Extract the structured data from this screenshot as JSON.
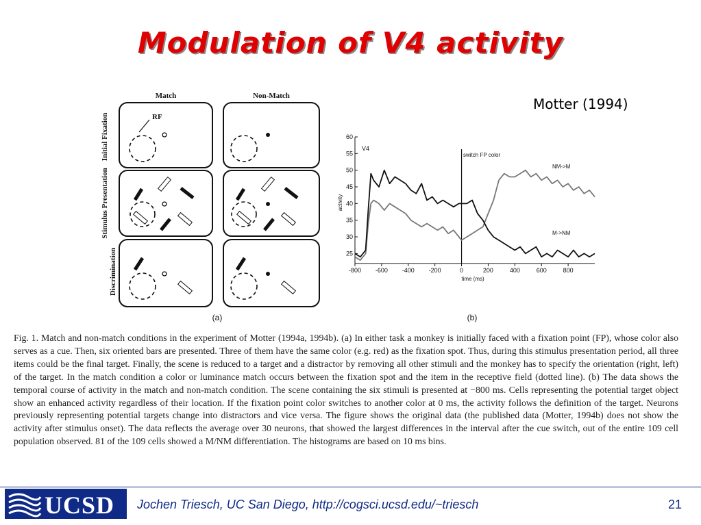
{
  "slide": {
    "title": "Modulation of V4 activity",
    "citation": "Motter (1994)",
    "page_number": "21"
  },
  "figure_a": {
    "label": "(a)",
    "column_headers": [
      "Match",
      "Non-Match"
    ],
    "row_labels": [
      "Initial Fixation",
      "Stimulus Presentation",
      "Discrimination"
    ],
    "rf_label": "RF"
  },
  "figure_b": {
    "label": "(b)",
    "panel_label": "V4",
    "event_label": "switch FP color",
    "y_axis_label": "activity",
    "x_axis_label": "time (ms)",
    "y_ticks": [
      "60",
      "55",
      "50",
      "45",
      "40",
      "35",
      "30",
      "25"
    ],
    "x_ticks": [
      "-800",
      "-600",
      "-400",
      "-200",
      "0",
      "200",
      "400",
      "600",
      "800"
    ],
    "series_labels": [
      "NM->M",
      "M->NM"
    ]
  },
  "chart_data": {
    "type": "line",
    "xlabel": "time (ms)",
    "ylabel": "activity",
    "xlim": [
      -800,
      1000
    ],
    "ylim": [
      22,
      60
    ],
    "event_line_x": 0,
    "series": [
      {
        "name": "NM->M",
        "x": [
          -800,
          -760,
          -720,
          -700,
          -680,
          -660,
          -620,
          -580,
          -540,
          -500,
          -460,
          -420,
          -380,
          -340,
          -300,
          -260,
          -220,
          -180,
          -140,
          -100,
          -60,
          -20,
          0,
          40,
          80,
          120,
          160,
          200,
          240,
          280,
          320,
          360,
          400,
          440,
          480,
          520,
          560,
          600,
          640,
          680,
          720,
          760,
          800,
          840,
          880,
          920,
          960,
          1000
        ],
        "y": [
          24,
          23,
          25,
          34,
          40,
          41,
          40,
          38,
          40,
          39,
          38,
          37,
          35,
          34,
          33,
          34,
          33,
          32,
          33,
          31,
          32,
          30,
          29,
          30,
          31,
          32,
          33,
          37,
          41,
          47,
          49,
          48,
          48,
          49,
          50,
          48,
          49,
          47,
          48,
          46,
          47,
          45,
          46,
          44,
          45,
          43,
          44,
          42
        ]
      },
      {
        "name": "M->NM",
        "x": [
          -800,
          -760,
          -720,
          -700,
          -680,
          -660,
          -620,
          -580,
          -540,
          -500,
          -460,
          -420,
          -380,
          -340,
          -300,
          -260,
          -220,
          -180,
          -140,
          -100,
          -60,
          -20,
          0,
          40,
          80,
          120,
          160,
          200,
          240,
          280,
          320,
          360,
          400,
          440,
          480,
          520,
          560,
          600,
          640,
          680,
          720,
          760,
          800,
          840,
          880,
          920,
          960,
          1000
        ],
        "y": [
          25,
          24,
          26,
          38,
          49,
          47,
          45,
          50,
          46,
          48,
          47,
          46,
          44,
          43,
          46,
          41,
          42,
          40,
          41,
          40,
          39,
          40,
          40,
          40,
          41,
          37,
          35,
          32,
          30,
          29,
          28,
          27,
          26,
          27,
          25,
          26,
          27,
          24,
          25,
          24,
          26,
          25,
          24,
          26,
          24,
          25,
          24,
          25
        ]
      }
    ]
  },
  "caption": "Fig. 1. Match and non-match conditions in the experiment of Motter (1994a, 1994b). (a) In either task a monkey is initially faced with a fixation point (FP), whose color also serves as a cue. Then, six oriented bars are presented. Three of them have the same color (e.g. red) as the fixation spot. Thus, during this stimulus presentation period, all three items could be the final target. Finally, the scene is reduced to a target and a distractor by removing all other stimuli and the monkey has to specify the orientation (right, left) of the target. In the match condition a color or luminance match occurs between the fixation spot and the item in the receptive field (dotted line). (b) The data shows the temporal course of activity in the match and non-match condition. The scene containing the six stimuli is presented at −800 ms. Cells representing the potential target object show an enhanced activity regardless of their location. If the fixation point color switches to another color at 0 ms, the activity follows the definition of the target. Neurons previously representing potential targets change into distractors and vice versa. The figure shows the original data (the published data (Motter, 1994b) does not show the activity after stimulus onset). The data reflects the average over 30 neurons, that showed the largest differences in the interval after the cue switch, out of the entire 109 cell population observed. 81 of the 109 cells showed a M/NM differentiation. The histograms are based on 10 ms bins.",
  "footer": {
    "logo_text": "UCSD",
    "text": "Jochen Triesch, UC San Diego, http://cogsci.ucsd.edu/~triesch"
  },
  "colors": {
    "title": "#e00000",
    "footer_blue": "#0f2a87"
  }
}
